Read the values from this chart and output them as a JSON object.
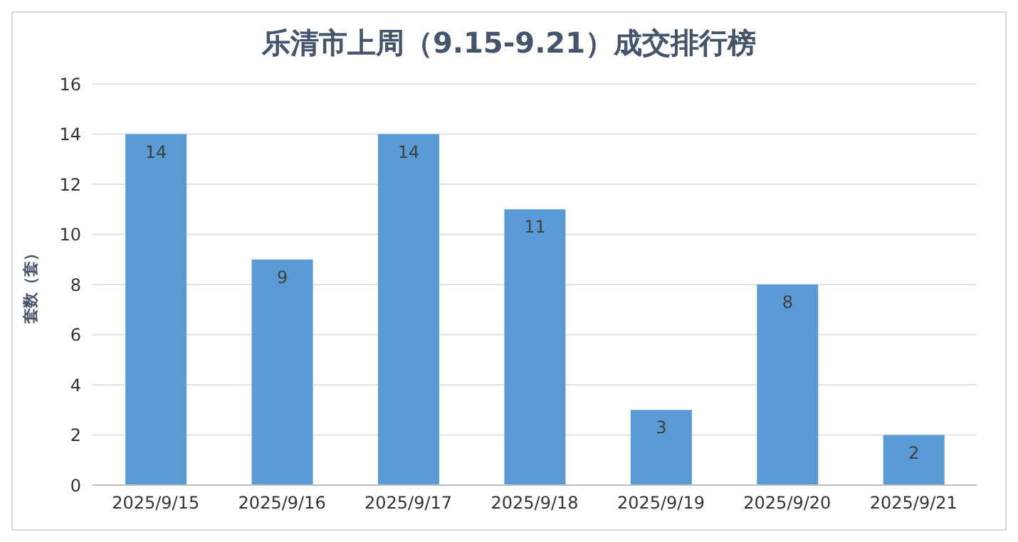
{
  "chart_data": {
    "type": "bar",
    "title": "乐清市上周（9.15-9.21）成交排行榜",
    "ylabel": "套数（套）",
    "categories": [
      "2025/9/15",
      "2025/9/16",
      "2025/9/17",
      "2025/9/18",
      "2025/9/19",
      "2025/9/20",
      "2025/9/21"
    ],
    "values": [
      14,
      9,
      14,
      11,
      3,
      8,
      2
    ],
    "color": "#5b9bd5",
    "ylim": [
      0,
      16
    ],
    "yticks": [
      0,
      2,
      4,
      6,
      8,
      10,
      12,
      14,
      16
    ],
    "grid": "y",
    "data_labels": true
  }
}
